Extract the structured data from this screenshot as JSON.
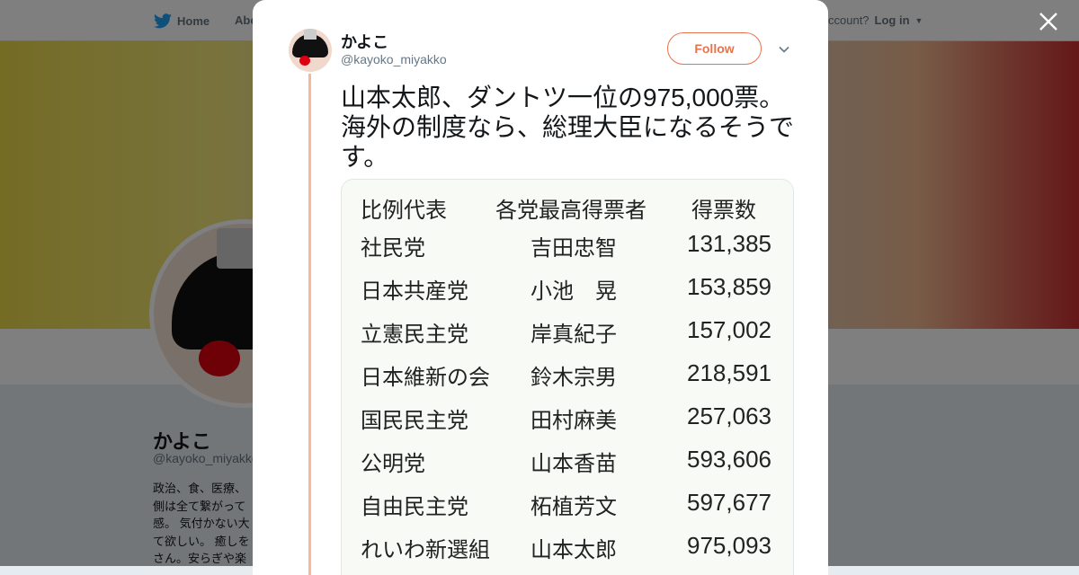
{
  "background": {
    "nav": {
      "home": "Home",
      "about": "Abo",
      "login_prompt": "ccount?",
      "login": "Log in"
    },
    "profile": {
      "name": "かよこ",
      "handle": "@kayoko_miyakko",
      "bio": [
        "政治、食、医療、",
        "側は全て繋がって",
        "感。 気付かない大",
        "て欲しい。 癒しを",
        "さん。安らぎや楽"
      ]
    }
  },
  "tweet": {
    "name": "かよこ",
    "handle": "@kayoko_miyakko",
    "follow_label": "Follow",
    "text": "山本太郎、ダントツ一位の975,000票。海外の制度なら、総理大臣になるそうです。",
    "accent": "#e8734a",
    "image_table": {
      "headers": [
        "比例代表",
        "各党最高得票者",
        "得票数"
      ],
      "rows": [
        [
          "社民党",
          "吉田忠智",
          "131,385"
        ],
        [
          "日本共産党",
          "小池　晃",
          "153,859"
        ],
        [
          "立憲民主党",
          "岸真紀子",
          "157,002"
        ],
        [
          "日本維新の会",
          "鈴木宗男",
          "218,591"
        ],
        [
          "国民民主党",
          "田村麻美",
          "257,063"
        ],
        [
          "公明党",
          "山本香苗",
          "593,606"
        ],
        [
          "自由民主党",
          "柘植芳文",
          "597,677"
        ],
        [
          "れいわ新選組",
          "山本太郎",
          "975,093"
        ]
      ]
    }
  }
}
